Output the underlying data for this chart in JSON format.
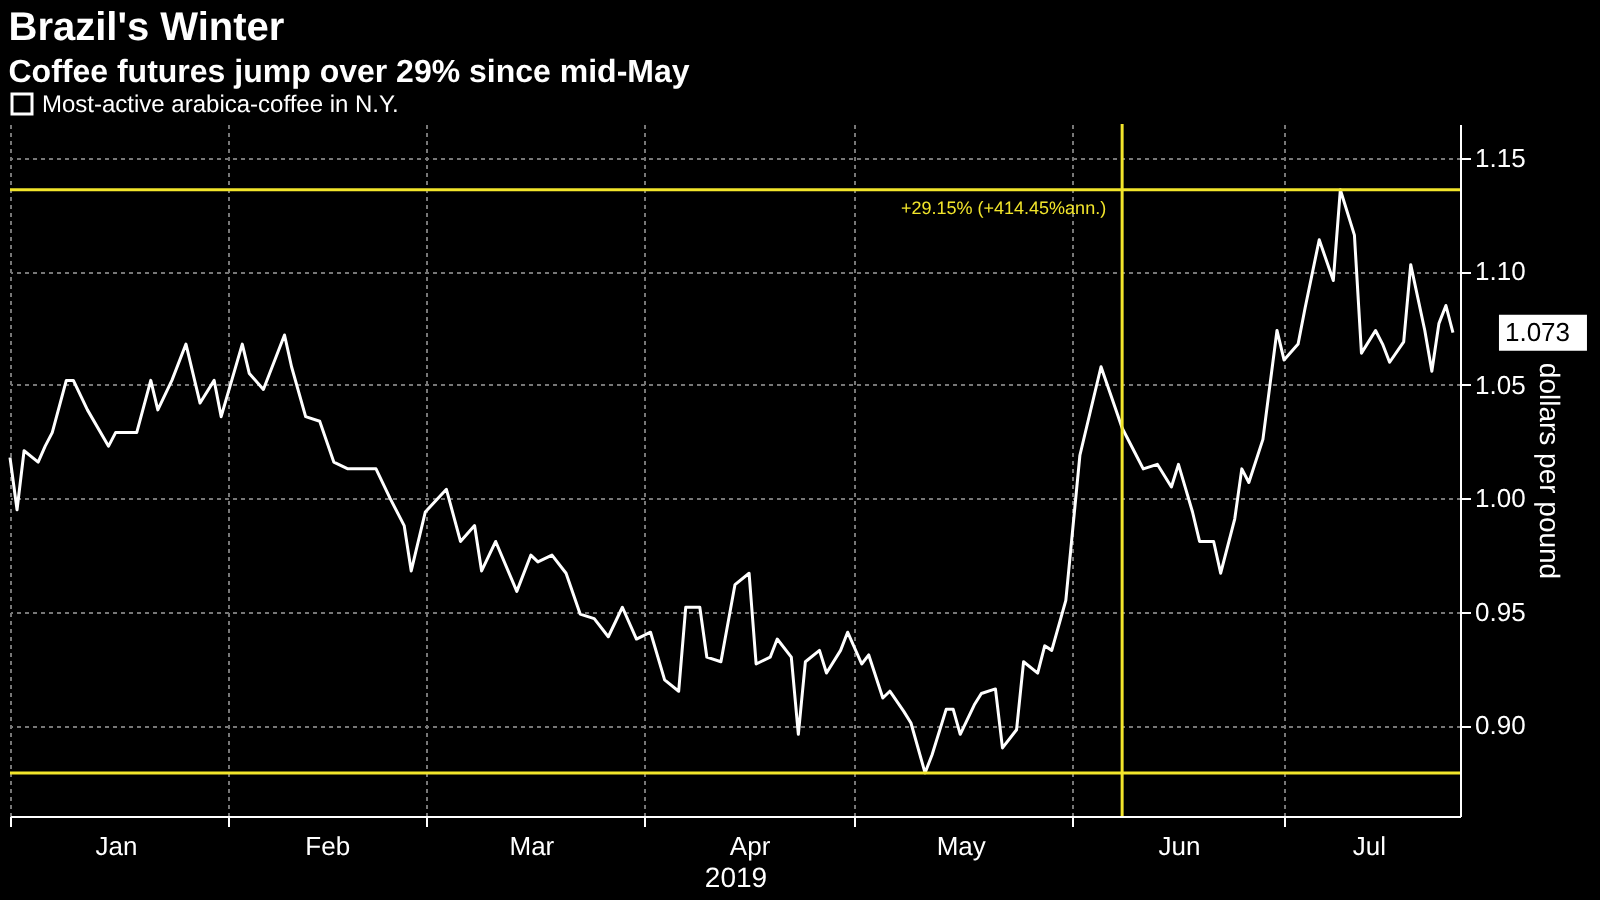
{
  "chart_data": {
    "type": "line",
    "title": "Brazil's Winter",
    "subtitle": "Coffee futures jump over 29% since mid-May",
    "xlabel": "2019",
    "ylabel": "dollars per pound",
    "x": [
      "2019-01-01",
      "2019-01-02",
      "2019-01-03",
      "2019-01-05",
      "2019-01-06",
      "2019-01-07",
      "2019-01-09",
      "2019-01-10",
      "2019-01-12",
      "2019-01-15",
      "2019-01-16",
      "2019-01-19",
      "2019-01-21",
      "2019-01-22",
      "2019-01-24",
      "2019-01-26",
      "2019-01-28",
      "2019-01-30",
      "2019-01-31",
      "2019-02-03",
      "2019-02-04",
      "2019-02-06",
      "2019-02-09",
      "2019-02-10",
      "2019-02-12",
      "2019-02-14",
      "2019-02-16",
      "2019-02-18",
      "2019-02-22",
      "2019-02-24",
      "2019-02-26",
      "2019-02-27",
      "2019-03-01",
      "2019-03-04",
      "2019-03-06",
      "2019-03-08",
      "2019-03-09",
      "2019-03-11",
      "2019-03-14",
      "2019-03-16",
      "2019-03-17",
      "2019-03-19",
      "2019-03-21",
      "2019-03-23",
      "2019-03-25",
      "2019-03-27",
      "2019-03-29",
      "2019-03-31",
      "2019-04-02",
      "2019-04-04",
      "2019-04-06",
      "2019-04-07",
      "2019-04-09",
      "2019-04-10",
      "2019-04-12",
      "2019-04-14",
      "2019-04-16",
      "2019-04-17",
      "2019-04-19",
      "2019-04-20",
      "2019-04-22",
      "2019-04-23",
      "2019-04-24",
      "2019-04-26",
      "2019-04-27",
      "2019-04-29",
      "2019-04-30",
      "2019-05-02",
      "2019-05-03",
      "2019-05-05",
      "2019-05-06",
      "2019-05-08",
      "2019-05-09",
      "2019-05-11",
      "2019-05-12",
      "2019-05-14",
      "2019-05-15",
      "2019-05-16",
      "2019-05-18",
      "2019-05-19",
      "2019-05-21",
      "2019-05-22",
      "2019-05-24",
      "2019-05-25",
      "2019-05-27",
      "2019-05-28",
      "2019-05-29",
      "2019-05-31",
      "2019-06-01",
      "2019-06-02",
      "2019-06-04",
      "2019-06-05",
      "2019-06-07",
      "2019-06-08",
      "2019-06-10",
      "2019-06-11",
      "2019-06-13",
      "2019-06-15",
      "2019-06-16",
      "2019-06-18",
      "2019-06-19",
      "2019-06-21",
      "2019-06-22",
      "2019-06-24",
      "2019-06-25",
      "2019-06-26",
      "2019-06-28",
      "2019-06-30",
      "2019-07-01",
      "2019-07-03",
      "2019-07-04",
      "2019-07-06",
      "2019-07-08",
      "2019-07-09",
      "2019-07-11",
      "2019-07-12",
      "2019-07-14",
      "2019-07-15",
      "2019-07-16",
      "2019-07-18",
      "2019-07-19",
      "2019-07-21",
      "2019-07-22",
      "2019-07-23",
      "2019-07-24",
      "2019-07-25"
    ],
    "series": [
      {
        "name": "Most-active arabica-coffee in N.Y.",
        "color": "#ffffff",
        "values": [
          1.018,
          0.995,
          1.021,
          1.016,
          1.023,
          1.029,
          1.052,
          1.052,
          1.039,
          1.023,
          1.029,
          1.029,
          1.052,
          1.039,
          1.052,
          1.068,
          1.042,
          1.052,
          1.036,
          1.068,
          1.055,
          1.048,
          1.072,
          1.058,
          1.036,
          1.034,
          1.016,
          1.013,
          1.013,
          1.0,
          0.988,
          0.968,
          0.994,
          1.004,
          0.981,
          0.988,
          0.968,
          0.981,
          0.959,
          0.975,
          0.972,
          0.975,
          0.967,
          0.949,
          0.947,
          0.939,
          0.952,
          0.938,
          0.941,
          0.92,
          0.915,
          0.952,
          0.952,
          0.93,
          0.928,
          0.962,
          0.967,
          0.927,
          0.93,
          0.938,
          0.93,
          0.896,
          0.928,
          0.933,
          0.923,
          0.933,
          0.941,
          0.927,
          0.931,
          0.912,
          0.915,
          0.906,
          0.901,
          0.879,
          0.887,
          0.907,
          0.907,
          0.896,
          0.909,
          0.914,
          0.916,
          0.89,
          0.898,
          0.928,
          0.923,
          0.935,
          0.933,
          0.955,
          0.987,
          1.019,
          1.045,
          1.058,
          1.04,
          1.031,
          1.019,
          1.013,
          1.015,
          1.005,
          1.015,
          0.994,
          0.981,
          0.981,
          0.967,
          0.991,
          1.013,
          1.007,
          1.026,
          1.074,
          1.061,
          1.068,
          1.084,
          1.114,
          1.096,
          1.136,
          1.116,
          1.064,
          1.074,
          1.068,
          1.06,
          1.069,
          1.103,
          1.074,
          1.056,
          1.077,
          1.085,
          1.073
        ]
      }
    ],
    "xlim": [
      "2019-01-01",
      "2019-07-26"
    ],
    "xticks": [
      {
        "value": "2019-01-01",
        "label": null
      },
      {
        "value": "2019-01-16",
        "label": "Jan"
      },
      {
        "value": "2019-02-01",
        "label": null
      },
      {
        "value": "2019-02-15",
        "label": "Feb"
      },
      {
        "value": "2019-03-01",
        "label": null
      },
      {
        "value": "2019-03-16",
        "label": "Mar"
      },
      {
        "value": "2019-04-01",
        "label": null
      },
      {
        "value": "2019-04-16",
        "label": "Apr"
      },
      {
        "value": "2019-05-01",
        "label": null
      },
      {
        "value": "2019-05-16",
        "label": "May"
      },
      {
        "value": "2019-06-01",
        "label": null
      },
      {
        "value": "2019-06-16",
        "label": "Jun"
      },
      {
        "value": "2019-07-01",
        "label": null
      },
      {
        "value": "2019-07-13",
        "label": "Jul"
      }
    ],
    "ylim": [
      0.86,
      1.165
    ],
    "yticks": [
      {
        "value": 0.9,
        "label": "0.90"
      },
      {
        "value": 0.95,
        "label": "0.95"
      },
      {
        "value": 1.0,
        "label": "1.00"
      },
      {
        "value": 1.05,
        "label": "1.05"
      },
      {
        "value": 1.1,
        "label": "1.10"
      },
      {
        "value": 1.15,
        "label": "1.15"
      }
    ],
    "ref_lines": [
      {
        "axis": "y",
        "value": 1.136,
        "color": "#f2e52b"
      },
      {
        "axis": "y",
        "value": 0.879,
        "color": "#f2e52b"
      },
      {
        "axis": "x",
        "value": "2019-06-08",
        "color": "#f2e52b"
      }
    ],
    "annotations": [
      {
        "text": "+29.15% (+414.45%ann.)",
        "x": "2019-06-08",
        "y": 1.136
      },
      {
        "text": "1.073",
        "x": "2019-07-25",
        "y": 1.073
      }
    ],
    "grid": true,
    "legend": "top left",
    "marker": "none",
    "line_style": "solid"
  }
}
